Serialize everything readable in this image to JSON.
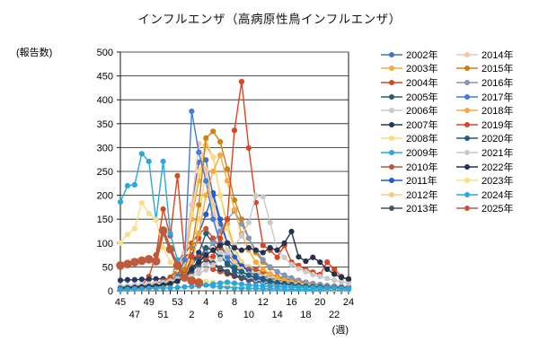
{
  "title": "インフルエンザ（高病原性鳥インフルエンザ）",
  "chart_data": {
    "type": "line",
    "title": "インフルエンザ（高病原性鳥インフルエンザ）",
    "ylabel": "(報告数)",
    "xlabel": "(週)",
    "ylim": [
      0,
      500
    ],
    "ytick_step": 50,
    "grid": true,
    "legend_position": "right",
    "x_weeks": [
      45,
      46,
      47,
      48,
      49,
      50,
      51,
      52,
      53,
      1,
      2,
      3,
      4,
      5,
      6,
      7,
      8,
      9,
      10,
      11,
      12,
      13,
      14,
      15,
      16,
      17,
      18,
      19,
      20,
      21,
      22,
      23,
      24
    ],
    "series": [
      {
        "name": "2002年",
        "color": "#4472C4",
        "thick": false,
        "values": [
          6,
          7,
          8,
          9,
          10,
          12,
          15,
          25,
          60,
          80,
          180,
          269,
          274,
          200,
          140,
          100,
          70,
          55,
          45,
          38,
          32,
          27,
          23,
          20,
          17,
          15,
          13,
          12,
          11,
          10,
          9,
          8,
          8
        ]
      },
      {
        "name": "2003年",
        "color": "#F6A840",
        "thick": false,
        "values": [
          3,
          4,
          5,
          6,
          8,
          10,
          15,
          25,
          40,
          60,
          150,
          230,
          305,
          280,
          200,
          140,
          90,
          60,
          45,
          38,
          30,
          25,
          20,
          16,
          14,
          12,
          10,
          8,
          7,
          6,
          5,
          4,
          4
        ]
      },
      {
        "name": "2004年",
        "color": "#D9481E",
        "thick": false,
        "values": [
          5,
          6,
          8,
          10,
          30,
          75,
          171,
          115,
          241,
          75,
          75,
          110,
          75,
          45,
          40,
          35,
          30,
          26,
          22,
          19,
          17,
          15,
          13,
          12,
          11,
          10,
          9,
          8,
          8,
          7,
          7,
          6,
          6
        ]
      },
      {
        "name": "2005年",
        "color": "#205E79",
        "thick": false,
        "values": [
          4,
          5,
          6,
          7,
          8,
          9,
          11,
          14,
          20,
          30,
          50,
          80,
          120,
          100,
          75,
          55,
          42,
          33,
          26,
          21,
          17,
          14,
          12,
          10,
          9,
          8,
          7,
          6,
          5,
          5,
          4,
          4,
          3
        ]
      },
      {
        "name": "2006年",
        "color": "#C9C9C9",
        "thick": false,
        "values": [
          8,
          9,
          10,
          11,
          12,
          13,
          14,
          16,
          20,
          26,
          34,
          44,
          56,
          68,
          78,
          80,
          72,
          60,
          50,
          42,
          35,
          30,
          26,
          22,
          19,
          16,
          14,
          12,
          11,
          10,
          9,
          8,
          8
        ]
      },
      {
        "name": "2007年",
        "color": "#1F3864",
        "thick": false,
        "values": [
          22,
          23,
          23,
          24,
          24,
          25,
          25,
          26,
          28,
          40,
          60,
          80,
          70,
          55,
          45,
          38,
          32,
          27,
          23,
          20,
          17,
          15,
          13,
          12,
          11,
          10,
          9,
          8,
          8,
          7,
          7,
          6,
          6
        ]
      },
      {
        "name": "2008年",
        "color": "#F8DC80",
        "thick": false,
        "values": [
          5,
          6,
          8,
          10,
          12,
          15,
          20,
          30,
          50,
          80,
          160,
          250,
          316,
          280,
          200,
          130,
          85,
          60,
          45,
          35,
          28,
          22,
          18,
          15,
          12,
          10,
          8,
          7,
          6,
          5,
          4,
          4,
          3
        ]
      },
      {
        "name": "2009年",
        "color": "#29A8E0",
        "thick": false,
        "values": [
          186,
          220,
          222,
          287,
          271,
          149,
          271,
          120,
          65,
          35,
          20,
          15,
          12,
          10,
          8,
          8,
          6,
          6,
          5,
          5,
          4,
          4,
          4,
          3,
          3,
          3,
          3,
          2,
          2,
          2,
          2,
          2,
          2
        ]
      },
      {
        "name": "2010年",
        "color": "#C0572F",
        "thick": false,
        "values": [
          8,
          9,
          10,
          12,
          14,
          16,
          20,
          28,
          45,
          75,
          100,
          120,
          130,
          110,
          90,
          75,
          62,
          52,
          45,
          45,
          40,
          35,
          30,
          26,
          22,
          19,
          17,
          15,
          13,
          11,
          10,
          9,
          8
        ]
      },
      {
        "name": "2011年",
        "color": "#1F5BD2",
        "thick": false,
        "values": [
          4,
          5,
          6,
          7,
          8,
          9,
          11,
          14,
          20,
          35,
          70,
          120,
          160,
          205,
          150,
          100,
          70,
          52,
          40,
          32,
          26,
          21,
          17,
          14,
          12,
          10,
          9,
          8,
          7,
          6,
          5,
          5,
          4
        ]
      },
      {
        "name": "2012年",
        "color": "#F2CF7E",
        "thick": false,
        "values": [
          4,
          5,
          6,
          8,
          10,
          12,
          15,
          20,
          30,
          50,
          90,
          150,
          255,
          180,
          120,
          85,
          60,
          45,
          35,
          28,
          22,
          18,
          15,
          12,
          10,
          8,
          7,
          6,
          5,
          4,
          4,
          3,
          3
        ]
      },
      {
        "name": "2013年",
        "color": "#44546A",
        "thick": false,
        "values": [
          6,
          7,
          8,
          9,
          10,
          11,
          13,
          16,
          20,
          28,
          40,
          55,
          65,
          58,
          48,
          40,
          34,
          28,
          24,
          20,
          17,
          15,
          13,
          11,
          10,
          9,
          8,
          7,
          7,
          6,
          6,
          5,
          5
        ]
      },
      {
        "name": "2014年",
        "color": "#F4C3B2",
        "thick": false,
        "values": [
          3,
          4,
          5,
          6,
          8,
          10,
          14,
          20,
          35,
          80,
          180,
          308,
          250,
          160,
          100,
          70,
          50,
          38,
          30,
          24,
          20,
          16,
          13,
          11,
          9,
          8,
          7,
          6,
          5,
          4,
          4,
          3,
          3
        ]
      },
      {
        "name": "2015年",
        "color": "#CE8013",
        "thick": false,
        "values": [
          2,
          3,
          4,
          5,
          6,
          8,
          12,
          20,
          35,
          45,
          90,
          180,
          320,
          334,
          312,
          255,
          190,
          150,
          110,
          80,
          60,
          48,
          40,
          32,
          26,
          22,
          18,
          15,
          12,
          10,
          8,
          7,
          6
        ]
      },
      {
        "name": "2016年",
        "color": "#8496B8",
        "thick": false,
        "values": [
          5,
          6,
          7,
          8,
          9,
          10,
          12,
          15,
          22,
          30,
          45,
          60,
          80,
          100,
          125,
          150,
          167,
          140,
          110,
          85,
          65,
          50,
          40,
          33,
          27,
          22,
          18,
          15,
          13,
          11,
          9,
          8,
          7
        ]
      },
      {
        "name": "2017年",
        "color": "#3E7DDA",
        "thick": false,
        "values": [
          5,
          6,
          7,
          8,
          9,
          10,
          12,
          18,
          30,
          65,
          376,
          290,
          230,
          150,
          100,
          70,
          50,
          40,
          32,
          26,
          22,
          18,
          15,
          13,
          11,
          10,
          9,
          8,
          7,
          6,
          6,
          5,
          5
        ]
      },
      {
        "name": "2018年",
        "color": "#F9A83A",
        "thick": false,
        "values": [
          2,
          3,
          3,
          4,
          5,
          6,
          8,
          12,
          20,
          30,
          60,
          120,
          200,
          250,
          284,
          230,
          170,
          120,
          85,
          60,
          45,
          35,
          28,
          22,
          18,
          15,
          12,
          10,
          8,
          7,
          6,
          5,
          4
        ]
      },
      {
        "name": "2019年",
        "color": "#DC4420",
        "thick": false,
        "values": [
          3,
          4,
          5,
          6,
          8,
          10,
          12,
          15,
          20,
          30,
          72,
          71,
          70,
          72,
          110,
          150,
          336,
          438,
          299,
          185,
          95,
          85,
          70,
          95,
          60,
          53,
          45,
          39,
          34,
          60,
          45,
          30,
          22
        ]
      },
      {
        "name": "2020年",
        "color": "#1E5F7C",
        "thick": false,
        "values": [
          6,
          7,
          8,
          9,
          10,
          11,
          13,
          16,
          22,
          30,
          45,
          65,
          90,
          85,
          70,
          58,
          48,
          40,
          33,
          28,
          24,
          20,
          17,
          15,
          13,
          11,
          10,
          9,
          8,
          7,
          6,
          6,
          5
        ]
      },
      {
        "name": "2021年",
        "color": "#C9C9C9",
        "thick": false,
        "values": [
          10,
          11,
          12,
          13,
          14,
          15,
          17,
          20,
          25,
          25,
          30,
          36,
          44,
          54,
          66,
          80,
          95,
          115,
          143,
          199,
          197,
          143,
          86,
          70,
          55,
          46,
          40,
          34,
          30,
          26,
          22,
          19,
          16
        ]
      },
      {
        "name": "2022年",
        "color": "#25324E",
        "thick": false,
        "values": [
          5,
          6,
          7,
          8,
          9,
          10,
          12,
          15,
          20,
          30,
          45,
          60,
          75,
          85,
          95,
          100,
          90,
          85,
          90,
          85,
          80,
          90,
          85,
          100,
          124,
          71,
          62,
          70,
          60,
          45,
          35,
          28,
          25
        ]
      },
      {
        "name": "2023年",
        "color": "#F8DF83",
        "thick": false,
        "values": [
          100,
          118,
          130,
          184,
          162,
          149,
          90,
          60,
          45,
          32,
          26,
          22,
          20,
          18,
          16,
          15,
          14,
          13,
          12,
          11,
          10,
          9,
          8,
          8,
          7,
          7,
          6,
          6,
          5,
          5,
          4,
          4,
          4
        ]
      },
      {
        "name": "2024年",
        "color": "#29A8E0",
        "thick": false,
        "values": [
          3,
          3,
          4,
          4,
          5,
          5,
          6,
          6,
          7,
          8,
          9,
          10,
          12,
          14,
          16,
          18,
          16,
          14,
          12,
          11,
          10,
          9,
          8,
          8,
          7,
          7,
          6,
          6,
          5,
          5,
          5,
          4,
          4
        ]
      },
      {
        "name": "2025年",
        "color": "#C05A3C",
        "thick": true,
        "values": [
          53,
          56,
          60,
          63,
          66,
          62,
          126,
          87,
          53,
          28,
          21,
          17,
          null,
          null,
          null,
          null,
          null,
          null,
          null,
          null,
          null,
          null,
          null,
          null,
          null,
          null,
          null,
          null,
          null,
          null,
          null,
          null,
          null
        ]
      }
    ]
  }
}
